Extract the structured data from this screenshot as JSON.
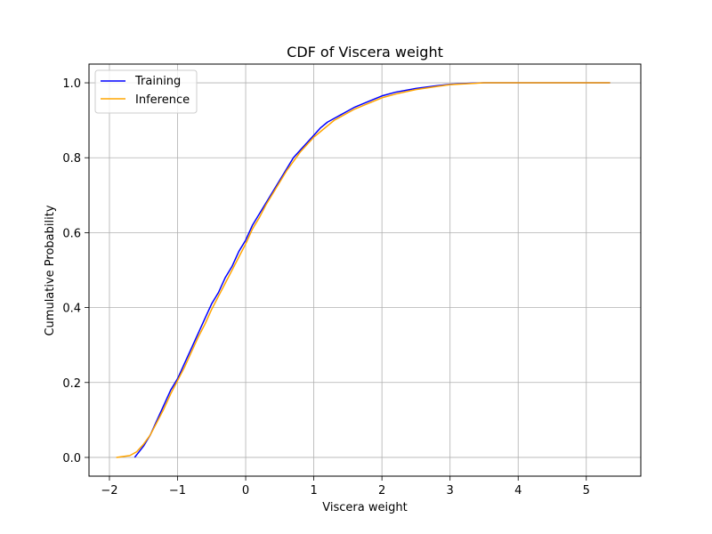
{
  "chart_data": {
    "type": "line",
    "title": "CDF of Viscera weight",
    "xlabel": "Viscera weight",
    "ylabel": "Cumulative Probability",
    "xlim": [
      -2.3,
      5.8
    ],
    "ylim": [
      -0.05,
      1.05
    ],
    "xticks": [
      -2,
      -1,
      0,
      1,
      2,
      3,
      4,
      5
    ],
    "yticks": [
      0.0,
      0.2,
      0.4,
      0.6,
      0.8,
      1.0
    ],
    "xtick_labels": [
      "−2",
      "−1",
      "0",
      "1",
      "2",
      "3",
      "4",
      "5"
    ],
    "ytick_labels": [
      "0.0",
      "0.2",
      "0.4",
      "0.6",
      "0.8",
      "1.0"
    ],
    "grid": true,
    "legend_position": "top-left",
    "series": [
      {
        "name": "Training",
        "color": "#0000ff",
        "x": [
          -1.63,
          -1.5,
          -1.4,
          -1.3,
          -1.2,
          -1.1,
          -1.0,
          -0.9,
          -0.8,
          -0.7,
          -0.6,
          -0.5,
          -0.4,
          -0.3,
          -0.2,
          -0.1,
          0.0,
          0.1,
          0.2,
          0.3,
          0.4,
          0.5,
          0.6,
          0.7,
          0.8,
          0.9,
          1.0,
          1.1,
          1.2,
          1.3,
          1.4,
          1.5,
          1.6,
          1.8,
          2.0,
          2.2,
          2.5,
          2.8,
          3.0,
          3.3,
          3.5,
          4.0,
          4.5,
          5.0,
          5.35
        ],
        "y": [
          0.0,
          0.03,
          0.06,
          0.1,
          0.14,
          0.18,
          0.21,
          0.25,
          0.29,
          0.33,
          0.37,
          0.41,
          0.44,
          0.48,
          0.51,
          0.55,
          0.58,
          0.62,
          0.65,
          0.68,
          0.71,
          0.74,
          0.77,
          0.8,
          0.82,
          0.84,
          0.86,
          0.88,
          0.895,
          0.905,
          0.915,
          0.925,
          0.935,
          0.95,
          0.965,
          0.975,
          0.985,
          0.992,
          0.996,
          0.999,
          1.0,
          1.0,
          1.0,
          1.0,
          1.0
        ]
      },
      {
        "name": "Inference",
        "color": "#ffa500",
        "x": [
          -1.9,
          -1.7,
          -1.6,
          -1.5,
          -1.4,
          -1.3,
          -1.2,
          -1.1,
          -1.0,
          -0.9,
          -0.8,
          -0.7,
          -0.6,
          -0.5,
          -0.4,
          -0.3,
          -0.2,
          -0.1,
          0.0,
          0.1,
          0.2,
          0.3,
          0.4,
          0.5,
          0.6,
          0.7,
          0.8,
          0.9,
          1.0,
          1.1,
          1.2,
          1.3,
          1.4,
          1.5,
          1.6,
          1.8,
          2.0,
          2.2,
          2.5,
          2.8,
          3.0,
          3.3,
          3.5,
          4.0,
          4.5,
          5.0,
          5.35
        ],
        "y": [
          0.0,
          0.005,
          0.015,
          0.035,
          0.06,
          0.095,
          0.13,
          0.17,
          0.205,
          0.24,
          0.28,
          0.32,
          0.355,
          0.395,
          0.43,
          0.465,
          0.5,
          0.535,
          0.57,
          0.61,
          0.64,
          0.675,
          0.705,
          0.735,
          0.765,
          0.79,
          0.815,
          0.835,
          0.855,
          0.87,
          0.885,
          0.9,
          0.91,
          0.92,
          0.93,
          0.945,
          0.96,
          0.97,
          0.982,
          0.99,
          0.995,
          0.998,
          1.0,
          1.0,
          1.0,
          1.0,
          1.0
        ]
      }
    ]
  }
}
